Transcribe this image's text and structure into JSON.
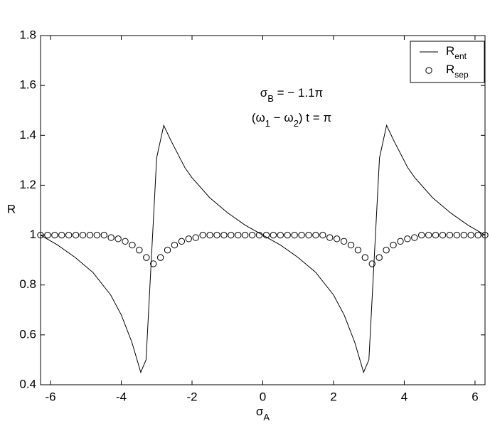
{
  "chart_data": {
    "type": "line",
    "xlabel": [
      {
        "text": "σ"
      },
      {
        "sub": "A"
      }
    ],
    "ylabel": "R",
    "annotations": [
      [
        {
          "text": "σ"
        },
        {
          "sub": "B"
        },
        {
          "text": " = − 1.1π"
        }
      ],
      [
        {
          "text": "(ω"
        },
        {
          "sub": "1"
        },
        {
          "text": " − ω"
        },
        {
          "sub": "2"
        },
        {
          "text": ") t = π"
        }
      ]
    ],
    "xlim": [
      -6.283,
      6.283
    ],
    "xticks": [
      -6,
      -4,
      -2,
      0,
      2,
      4,
      6
    ],
    "ylim": [
      0.4,
      1.8
    ],
    "yticks": [
      0.4,
      0.6,
      0.8,
      1,
      1.2,
      1.4,
      1.6,
      1.8
    ],
    "legend": "upper right",
    "series": [
      {
        "name": "R",
        "name_sub": "ent",
        "color": "#000000",
        "marker": "none",
        "x": [
          -6.283,
          -5.8,
          -5.3,
          -4.8,
          -4.3,
          -4.0,
          -3.7,
          -3.45,
          -3.3,
          -3.0,
          -2.8,
          -2.6,
          -2.2,
          -2.0,
          -1.5,
          -1.0,
          -0.5,
          0,
          0.5,
          1.0,
          1.5,
          2.0,
          2.3,
          2.6,
          2.85,
          3.0,
          3.3,
          3.5,
          3.7,
          4.1,
          4.3,
          4.8,
          5.3,
          5.8,
          6.283
        ],
        "values": [
          1.0,
          0.96,
          0.91,
          0.85,
          0.76,
          0.68,
          0.57,
          0.45,
          0.5,
          1.31,
          1.44,
          1.38,
          1.27,
          1.23,
          1.15,
          1.09,
          1.04,
          1.0,
          0.96,
          0.91,
          0.85,
          0.76,
          0.68,
          0.57,
          0.45,
          0.5,
          1.31,
          1.44,
          1.38,
          1.27,
          1.23,
          1.15,
          1.09,
          1.04,
          1.0
        ]
      },
      {
        "name": "R",
        "name_sub": "sep",
        "color": "#000000",
        "marker": "circle",
        "x": [
          -6.283,
          -6.084,
          -5.884,
          -5.685,
          -5.485,
          -5.286,
          -5.087,
          -4.887,
          -4.688,
          -4.488,
          -4.289,
          -4.089,
          -3.89,
          -3.69,
          -3.491,
          -3.291,
          -3.092,
          -2.892,
          -2.693,
          -2.494,
          -2.294,
          -2.095,
          -1.895,
          -1.696,
          -1.496,
          -1.297,
          -1.097,
          -0.898,
          -0.698,
          -0.499,
          -0.299,
          -0.1,
          0.1,
          0.299,
          0.499,
          0.698,
          0.898,
          1.097,
          1.297,
          1.496,
          1.696,
          1.895,
          2.095,
          2.294,
          2.494,
          2.693,
          2.892,
          3.092,
          3.291,
          3.491,
          3.69,
          3.89,
          4.089,
          4.289,
          4.488,
          4.688,
          4.887,
          5.087,
          5.286,
          5.485,
          5.685,
          5.884,
          6.084,
          6.283
        ],
        "values": [
          1.0,
          1.0,
          1.0,
          1.0,
          1.0,
          1.0,
          1.0,
          1.0,
          1.0,
          1.0,
          0.99,
          0.985,
          0.975,
          0.96,
          0.94,
          0.91,
          0.885,
          0.91,
          0.94,
          0.96,
          0.975,
          0.985,
          0.99,
          1.0,
          1.0,
          1.0,
          1.0,
          1.0,
          1.0,
          1.0,
          1.0,
          1.0,
          1.0,
          1.0,
          1.0,
          1.0,
          1.0,
          1.0,
          1.0,
          1.0,
          1.0,
          0.99,
          0.985,
          0.975,
          0.96,
          0.94,
          0.91,
          0.885,
          0.91,
          0.94,
          0.96,
          0.975,
          0.985,
          0.99,
          1.0,
          1.0,
          1.0,
          1.0,
          1.0,
          1.0,
          1.0,
          1.0,
          1.0,
          1.0
        ]
      }
    ]
  }
}
